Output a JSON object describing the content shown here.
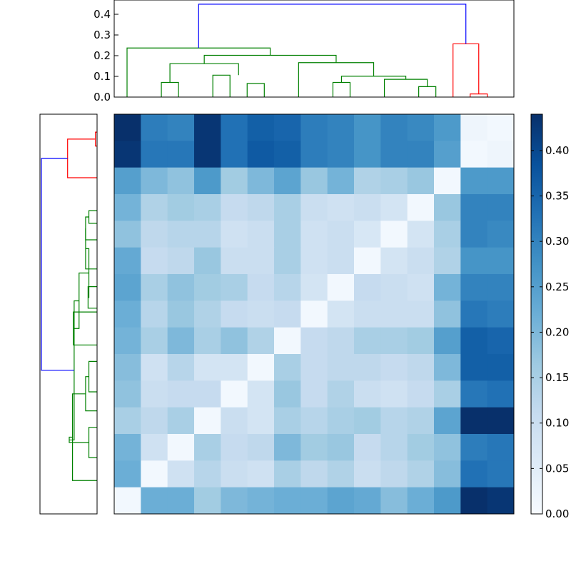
{
  "chart_data": [
    {
      "type": "dendrogram",
      "panel": "top",
      "yticks": [
        "0.0",
        "0.1",
        "0.2",
        "0.3",
        "0.4"
      ],
      "ylim": [
        0,
        0.465
      ],
      "leaf_count": 15,
      "colors": {
        "root": "#0000ff",
        "cluster_a": "#008000",
        "cluster_b": "#ff0000"
      },
      "links": [
        {
          "cluster": "cluster_a",
          "height": 0.07,
          "left_pos": 2.0,
          "left_h": 0,
          "right_pos": 3.0,
          "right_h": 0
        },
        {
          "cluster": "cluster_a",
          "height": 0.105,
          "left_pos": 5.0,
          "left_h": 0,
          "right_pos": 6.0,
          "right_h": 0
        },
        {
          "cluster": "cluster_a",
          "height": 0.065,
          "left_pos": 7.0,
          "left_h": 0,
          "right_pos": 8.0,
          "right_h": 0
        },
        {
          "cluster": "cluster_a",
          "height": 0.07,
          "left_pos": 12.0,
          "left_h": 0,
          "right_pos": 13.0,
          "right_h": 0
        },
        {
          "cluster": "cluster_a",
          "height": 0.05,
          "left_pos": 17.0,
          "left_h": 0,
          "right_pos": 18.0,
          "right_h": 0
        },
        {
          "cluster": "cluster_b",
          "height": 0.015,
          "left_pos": 20.0,
          "left_h": 0,
          "right_pos": 21.0,
          "right_h": 0
        },
        {
          "cluster": "cluster_a",
          "height": 0.16,
          "left_pos": 2.5,
          "left_h": 0.07,
          "right_pos": 6.5,
          "right_h": 0.105
        },
        {
          "cluster": "cluster_a",
          "height": 0.085,
          "left_pos": 15.0,
          "left_h": 0,
          "right_pos": 17.5,
          "right_h": 0.05
        },
        {
          "cluster": "cluster_a",
          "height": 0.1,
          "left_pos": 12.5,
          "left_h": 0.07,
          "right_pos": 16.25,
          "right_h": 0.085
        },
        {
          "cluster": "cluster_a",
          "height": 0.165,
          "left_pos": 10.0,
          "left_h": 0,
          "right_pos": 14.375,
          "right_h": 0.1
        },
        {
          "cluster": "cluster_a",
          "height": 0.2,
          "left_pos": 4.5,
          "left_h": 0.16,
          "right_pos": 12.1875,
          "right_h": 0.165
        },
        {
          "cluster": "cluster_a",
          "height": 0.235,
          "left_pos": 0.0,
          "left_h": 0,
          "right_pos": 8.34375,
          "right_h": 0.2
        },
        {
          "cluster": "cluster_b",
          "height": 0.255,
          "left_pos": 19.0,
          "left_h": 0,
          "right_pos": 20.5,
          "right_h": 0.015
        },
        {
          "cluster": "root",
          "height": 0.445,
          "left_pos": 4.171875,
          "left_h": 0.235,
          "right_pos": 19.75,
          "right_h": 0.255
        }
      ]
    },
    {
      "type": "dendrogram",
      "panel": "left",
      "leaf_count": 15,
      "xlim": [
        0,
        0.34
      ],
      "colors": {
        "root": "#0000ff",
        "cluster_a": "#008000",
        "cluster_b": "#ff0000"
      },
      "links": [
        {
          "cluster": "cluster_b",
          "height": 0.01,
          "left_pos": 0.2,
          "left_h": 0,
          "right_pos": 0.75,
          "right_h": 0
        },
        {
          "cluster": "cluster_b",
          "height": 0.18,
          "left_pos": 0.475,
          "left_h": 0.01,
          "right_pos": 2.0,
          "right_h": 0
        },
        {
          "cluster": "cluster_a",
          "height": 0.05,
          "left_pos": 3.3,
          "left_h": 0,
          "right_pos": 3.8,
          "right_h": 0
        },
        {
          "cluster": "cluster_a",
          "height": 0.07,
          "left_pos": 3.55,
          "left_h": 0.05,
          "right_pos": 4.45,
          "right_h": 0
        },
        {
          "cluster": "cluster_a",
          "height": 0.055,
          "left_pos": 6.3,
          "left_h": 0,
          "right_pos": 7.15,
          "right_h": 0
        },
        {
          "cluster": "cluster_a",
          "height": 0.07,
          "left_pos": 4.0,
          "left_h": 0.07,
          "right_pos": 5.6,
          "right_h": 0
        },
        {
          "cluster": "cluster_a",
          "height": 0.05,
          "left_pos": 4.8,
          "left_h": 0.07,
          "right_pos": 6.725,
          "right_h": 0.055
        },
        {
          "cluster": "cluster_a",
          "height": 0.145,
          "left_pos": 7.3,
          "left_h": 0,
          "right_pos": 8.6,
          "right_h": 0
        },
        {
          "cluster": "cluster_a",
          "height": 0.11,
          "left_pos": 5.76,
          "left_h": 0.05,
          "right_pos": 7.95,
          "right_h": 0.145
        },
        {
          "cluster": "cluster_a",
          "height": 0.05,
          "left_pos": 9.25,
          "left_h": 0,
          "right_pos": 10.45,
          "right_h": 0
        },
        {
          "cluster": "cluster_a",
          "height": 0.07,
          "left_pos": 9.85,
          "left_h": 0.05,
          "right_pos": 11.2,
          "right_h": 0
        },
        {
          "cluster": "cluster_a",
          "height": 0.05,
          "left_pos": 11.85,
          "left_h": 0,
          "right_pos": 13.05,
          "right_h": 0
        },
        {
          "cluster": "cluster_a",
          "height": 0.15,
          "left_pos": 10.53,
          "left_h": 0.07,
          "right_pos": 13.95,
          "right_h": 0
        },
        {
          "cluster": "cluster_a",
          "height": 0.17,
          "left_pos": 12.24,
          "left_h": 0.15,
          "right_pos": 12.45,
          "right_h": 0.05
        },
        {
          "cluster": "cluster_a",
          "height": 0.14,
          "left_pos": 6.86,
          "left_h": 0.11,
          "right_pos": 12.35,
          "right_h": 0.17
        },
        {
          "cluster": "root",
          "height": 0.34,
          "left_pos": 1.24,
          "left_h": 0.18,
          "right_pos": 9.6,
          "right_h": 0.14
        }
      ]
    },
    {
      "type": "heatmap",
      "rows": 15,
      "cols": 15,
      "vmin": 0,
      "vmax": 0.44,
      "colormap": "Blues",
      "values": [
        [
          0.44,
          0.31,
          0.3,
          0.43,
          0.33,
          0.36,
          0.35,
          0.31,
          0.3,
          0.27,
          0.3,
          0.29,
          0.26,
          0.02,
          0.01
        ],
        [
          0.43,
          0.32,
          0.32,
          0.43,
          0.33,
          0.37,
          0.36,
          0.31,
          0.3,
          0.27,
          0.3,
          0.3,
          0.25,
          0.01,
          0.02
        ],
        [
          0.25,
          0.2,
          0.18,
          0.26,
          0.16,
          0.2,
          0.24,
          0.17,
          0.21,
          0.14,
          0.15,
          0.17,
          0.01,
          0.26,
          0.26
        ],
        [
          0.21,
          0.14,
          0.16,
          0.15,
          0.11,
          0.12,
          0.15,
          0.1,
          0.09,
          0.1,
          0.08,
          0.01,
          0.17,
          0.3,
          0.3
        ],
        [
          0.18,
          0.12,
          0.13,
          0.13,
          0.09,
          0.1,
          0.15,
          0.09,
          0.1,
          0.07,
          0.01,
          0.08,
          0.15,
          0.3,
          0.29
        ],
        [
          0.23,
          0.11,
          0.12,
          0.17,
          0.1,
          0.1,
          0.15,
          0.09,
          0.1,
          0.01,
          0.08,
          0.1,
          0.14,
          0.27,
          0.27
        ],
        [
          0.24,
          0.15,
          0.18,
          0.16,
          0.15,
          0.11,
          0.13,
          0.08,
          0.01,
          0.11,
          0.1,
          0.09,
          0.21,
          0.3,
          0.3
        ],
        [
          0.22,
          0.13,
          0.17,
          0.14,
          0.11,
          0.1,
          0.11,
          0.01,
          0.08,
          0.1,
          0.1,
          0.1,
          0.18,
          0.32,
          0.31
        ],
        [
          0.21,
          0.15,
          0.2,
          0.15,
          0.18,
          0.14,
          0.01,
          0.11,
          0.12,
          0.15,
          0.15,
          0.16,
          0.25,
          0.36,
          0.35
        ],
        [
          0.19,
          0.09,
          0.13,
          0.08,
          0.08,
          0.01,
          0.15,
          0.11,
          0.12,
          0.12,
          0.11,
          0.12,
          0.2,
          0.36,
          0.36
        ],
        [
          0.18,
          0.1,
          0.11,
          0.11,
          0.01,
          0.08,
          0.17,
          0.11,
          0.14,
          0.1,
          0.09,
          0.11,
          0.15,
          0.32,
          0.33
        ],
        [
          0.15,
          0.12,
          0.15,
          0.01,
          0.1,
          0.08,
          0.15,
          0.13,
          0.15,
          0.16,
          0.13,
          0.14,
          0.24,
          0.44,
          0.44
        ],
        [
          0.21,
          0.09,
          0.01,
          0.15,
          0.11,
          0.12,
          0.2,
          0.16,
          0.17,
          0.11,
          0.13,
          0.16,
          0.18,
          0.31,
          0.32
        ],
        [
          0.22,
          0.01,
          0.09,
          0.13,
          0.1,
          0.09,
          0.15,
          0.12,
          0.14,
          0.1,
          0.12,
          0.14,
          0.19,
          0.33,
          0.32
        ],
        [
          0.01,
          0.22,
          0.22,
          0.16,
          0.2,
          0.21,
          0.22,
          0.22,
          0.24,
          0.23,
          0.19,
          0.22,
          0.26,
          0.44,
          0.43
        ]
      ]
    },
    {
      "type": "colorbar",
      "colormap": "Blues",
      "range": [
        0,
        0.44
      ],
      "ticks": [
        "0.00",
        "0.05",
        "0.10",
        "0.15",
        "0.20",
        "0.25",
        "0.30",
        "0.35",
        "0.40"
      ],
      "tick_values": [
        0,
        0.05,
        0.1,
        0.15,
        0.2,
        0.25,
        0.3,
        0.35,
        0.4
      ]
    }
  ]
}
